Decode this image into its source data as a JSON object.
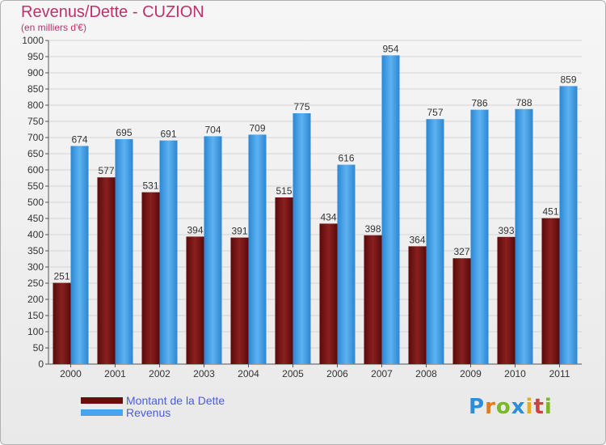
{
  "header": {
    "title": "Revenus/Dette - CUZION",
    "subtitle": "(en milliers d'€)"
  },
  "legend": {
    "debt_label": "Montant de la Dette",
    "revenue_label": "Revenus"
  },
  "logo": {
    "text": "Proxiti"
  },
  "colors": {
    "debt": "#7a1212",
    "revenue": "#4aa3e8",
    "title": "#c0306a",
    "legend_text": "#4a5de0"
  },
  "chart_data": {
    "type": "bar",
    "title": "Revenus/Dette - CUZION",
    "subtitle": "(en milliers d'€)",
    "categories": [
      "2000",
      "2001",
      "2002",
      "2003",
      "2004",
      "2005",
      "2006",
      "2007",
      "2008",
      "2009",
      "2010",
      "2011"
    ],
    "series": [
      {
        "name": "Montant de la Dette",
        "values": [
          251,
          577,
          531,
          394,
          391,
          515,
          434,
          398,
          364,
          327,
          393,
          451
        ]
      },
      {
        "name": "Revenus",
        "values": [
          674,
          695,
          691,
          704,
          709,
          775,
          616,
          954,
          757,
          786,
          788,
          859
        ]
      }
    ],
    "ylim": [
      0,
      1000
    ],
    "ytick_step": 50,
    "grid": true,
    "legend_position": "bottom-left"
  }
}
